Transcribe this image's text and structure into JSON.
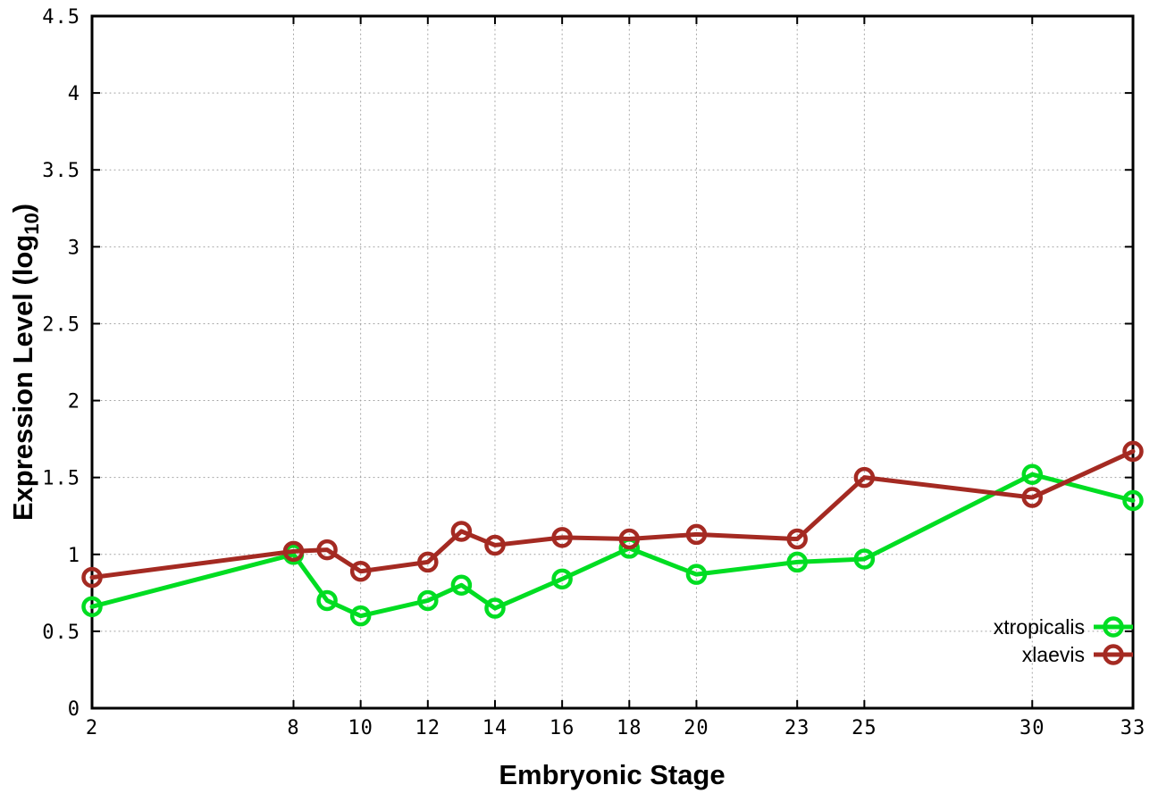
{
  "chart_data": {
    "type": "line",
    "title": "",
    "xlabel": "Embryonic Stage",
    "ylabel": {
      "main": "Expression Level (log",
      "sub": "10",
      "close": ")"
    },
    "xlim": [
      2,
      33
    ],
    "ylim": [
      0,
      4.5
    ],
    "xticks": [
      2,
      8,
      10,
      12,
      14,
      16,
      18,
      20,
      23,
      25,
      30,
      33
    ],
    "ytick_step": 0.5,
    "grid": true,
    "legend_position": "bottom-right",
    "x": [
      2,
      8,
      9,
      10,
      12,
      13,
      14,
      16,
      18,
      20,
      23,
      25,
      30,
      33
    ],
    "series": [
      {
        "name": "xtropicalis",
        "color": "#00dd22",
        "marker": "open-circle",
        "values": [
          0.66,
          1.0,
          0.7,
          0.6,
          0.7,
          0.8,
          0.65,
          0.84,
          1.04,
          0.87,
          0.95,
          0.97,
          1.52,
          1.35
        ]
      },
      {
        "name": "xlaevis",
        "color": "#a42a22",
        "marker": "open-circle",
        "values": [
          0.85,
          1.02,
          1.03,
          0.89,
          0.95,
          1.15,
          1.06,
          1.11,
          1.1,
          1.13,
          1.1,
          1.5,
          1.37,
          1.67
        ]
      }
    ]
  },
  "colors": {
    "background": "#ffffff",
    "axis": "#000000",
    "grid": "#9e9e9e"
  }
}
